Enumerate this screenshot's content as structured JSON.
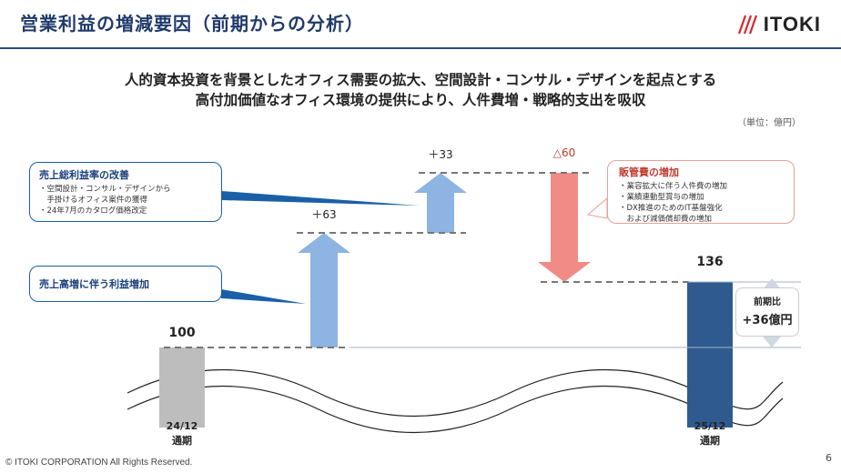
{
  "header": {
    "title": "営業利益の増減要因（前期からの分析）",
    "logo_text": "ITOKI"
  },
  "subtitle": {
    "line1": "人的資本投資を背景としたオフィス需要の拡大、空間設計・コンサル・デザインを起点とする",
    "line2": "高付加価値なオフィス環境の提供により、人件費増・戦略的支出を吸収"
  },
  "unit_label": "（単位：億円）",
  "callouts": {
    "gross_margin": {
      "title": "売上総利益率の改善",
      "lines": [
        "・空間設計・コンサル・デザインから",
        "　手掛けるオフィス案件の獲得",
        "・24年7月のカタログ価格改定"
      ]
    },
    "sales_increase": {
      "title": "売上高増に伴う利益増加"
    },
    "sga": {
      "title": "販管費の増加",
      "lines": [
        "・業容拡大に伴う人件費の増加",
        "・業績連動型賞与の増加",
        "・DX推進のためのIT基盤強化",
        "　および減価償却費の増加"
      ]
    },
    "yoy": {
      "label": "前期比",
      "value": "+36億円"
    }
  },
  "chart_data": {
    "type": "waterfall",
    "title": "",
    "steps": [
      {
        "label": "24/12\n通期",
        "kind": "total",
        "value": 100,
        "value_label": "100",
        "color": "#bdbdbd"
      },
      {
        "label": "",
        "kind": "increase",
        "value": 63,
        "value_label": "＋63",
        "color": "#8db4e2"
      },
      {
        "label": "",
        "kind": "increase",
        "value": 33,
        "value_label": "＋33",
        "color": "#8db4e2"
      },
      {
        "label": "",
        "kind": "decrease",
        "value": -60,
        "value_label": "△60",
        "color": "#f08c85"
      },
      {
        "label": "25/12\n通期",
        "kind": "total",
        "value": 136,
        "value_label": "136",
        "color": "#2f5a8f"
      }
    ],
    "category_labels": [
      {
        "line1": "24/12",
        "line2": "通期"
      },
      {
        "line1": "25/12",
        "line2": "通期"
      }
    ],
    "y_axis": "broken"
  },
  "footer": {
    "copyright": "© ITOKI CORPORATION All Rights Reserved.",
    "page_number": "6"
  },
  "colors": {
    "brand": "#1f3a6b",
    "increase": "#8db4e2",
    "decrease": "#f08c85",
    "total_start": "#bdbdbd",
    "total_end": "#2f5a8f",
    "callout_blue": "#1a5fa8",
    "callout_red": "#d9534f"
  }
}
